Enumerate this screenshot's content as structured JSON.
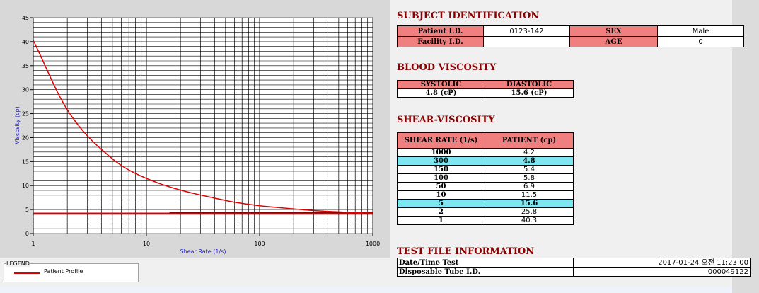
{
  "chart_data": {
    "type": "line",
    "xlabel": "Shear Rate (1/s)",
    "ylabel": "Viscosity (cp)",
    "xscale": "log",
    "xlim": [
      1,
      1000
    ],
    "ylim": [
      0,
      45
    ],
    "yticks": [
      0,
      5,
      10,
      15,
      20,
      25,
      30,
      35,
      40,
      45
    ],
    "xticks": [
      1,
      10,
      100,
      1000
    ],
    "grid": true,
    "series": [
      {
        "name": "Patient Profile",
        "color": "#e00000",
        "x": [
          1,
          2,
          5,
          10,
          50,
          100,
          150,
          300,
          1000
        ],
        "y": [
          40.3,
          25.8,
          15.6,
          11.5,
          6.9,
          5.8,
          5.4,
          4.8,
          4.2
        ]
      }
    ],
    "reference_lines": [
      {
        "color": "#e00000",
        "y": 4.2,
        "x": [
          1,
          1000
        ]
      },
      {
        "color": "#8b0000",
        "y": 4.4,
        "x": [
          16,
          1000
        ]
      }
    ]
  },
  "legend": {
    "title": "LEGEND",
    "items": [
      {
        "label": "Patient Profile",
        "color": "#e00000"
      }
    ]
  },
  "subject": {
    "title": "SUBJECT IDENTIFICATION",
    "patient_id_label": "Patient I.D.",
    "patient_id": "0123-142",
    "sex_label": "SEX",
    "sex": "Male",
    "facility_label": "Facility I.D.",
    "facility": "",
    "age_label": "AGE",
    "age": "0"
  },
  "blood": {
    "title": "BLOOD VISCOSITY",
    "systolic_label": "SYSTOLIC",
    "diastolic_label": "DIASTOLIC",
    "systolic": "4.8 (cP)",
    "diastolic": "15.6 (cP)"
  },
  "shear": {
    "title": "SHEAR-VISCOSITY",
    "col1": "SHEAR RATE (1/s)",
    "col2": "PATIENT (cp)",
    "rows": [
      {
        "rate": "1000",
        "value": "4.2"
      },
      {
        "rate": "300",
        "value": "4.8"
      },
      {
        "rate": "150",
        "value": "5.4"
      },
      {
        "rate": "100",
        "value": "5.8"
      },
      {
        "rate": "50",
        "value": "6.9"
      },
      {
        "rate": "10",
        "value": "11.5"
      },
      {
        "rate": "5",
        "value": "15.6"
      },
      {
        "rate": "2",
        "value": "25.8"
      },
      {
        "rate": "1",
        "value": "40.3"
      }
    ]
  },
  "testfile": {
    "title": "TEST FILE INFORMATION",
    "date_label": "Date/Time Test",
    "date_value": "2017-01-24   오전 11:23:00",
    "tube_label": "Disposable Tube I.D.",
    "tube_value": "000049122"
  }
}
